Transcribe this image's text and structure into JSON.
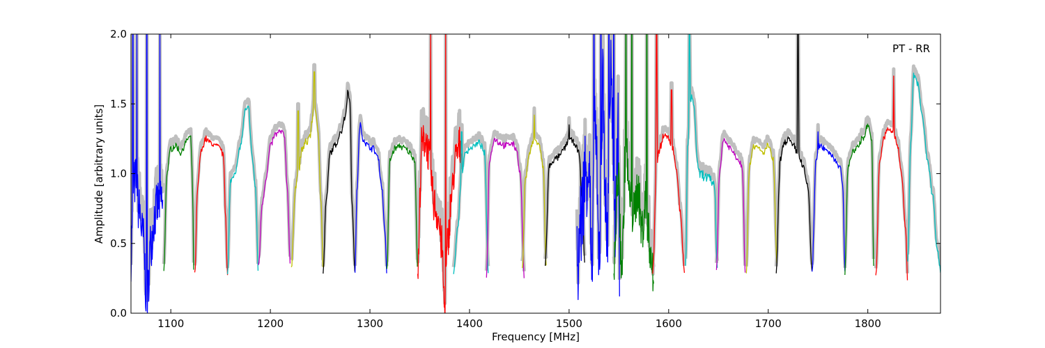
{
  "chart_data": {
    "type": "line",
    "title": "",
    "xlabel": "Frequency [MHz]",
    "ylabel": "Amplitude [arbitrary units]",
    "annotation": "PT - RR",
    "xlim": [
      1060,
      1873
    ],
    "ylim": [
      0.0,
      2.0
    ],
    "xticks": [
      1100,
      1200,
      1300,
      1400,
      1500,
      1600,
      1700,
      1800
    ],
    "yticks": [
      0.0,
      0.5,
      1.0,
      1.5,
      2.0
    ],
    "xtick_labels": [
      "1100",
      "1200",
      "1300",
      "1400",
      "1500",
      "1600",
      "1700",
      "1800"
    ],
    "ytick_labels": [
      "0.0",
      "0.5",
      "1.0",
      "1.5",
      "2.0"
    ],
    "grid": false,
    "legend": "none",
    "envelope_color": "#bfbfbf",
    "colors": {
      "b": "#0000ff",
      "g": "#008000",
      "r": "#ff0000",
      "c": "#00bfbf",
      "m": "#bf00bf",
      "y": "#bfbf00",
      "k": "#000000"
    },
    "bands": [
      {
        "color": "b",
        "x": [
          1060,
          1062,
          1065,
          1068,
          1072,
          1076,
          1080,
          1084,
          1088,
          1091,
          1092
        ],
        "y": [
          0.4,
          0.9,
          0.95,
          0.75,
          0.55,
          0.08,
          0.5,
          0.7,
          0.8,
          0.8,
          0.75
        ],
        "noise": 0.18,
        "spikes": [
          [
            1062,
            2.0
          ],
          [
            1066,
            2.0
          ],
          [
            1076,
            2.0
          ],
          [
            1089,
            2.0
          ]
        ]
      },
      {
        "color": "g",
        "x": [
          1093,
          1096,
          1100,
          1105,
          1110,
          1115,
          1118,
          1120,
          1122,
          1123
        ],
        "y": [
          0.3,
          1.0,
          1.18,
          1.2,
          1.15,
          1.22,
          1.26,
          1.25,
          0.9,
          0.3
        ],
        "noise": 0.02,
        "spikes": []
      },
      {
        "color": "r",
        "x": [
          1124,
          1127,
          1130,
          1135,
          1140,
          1145,
          1150,
          1153,
          1155,
          1157
        ],
        "y": [
          0.27,
          0.9,
          1.15,
          1.25,
          1.22,
          1.2,
          1.18,
          1.12,
          0.7,
          0.27
        ],
        "noise": 0.02,
        "spikes": []
      },
      {
        "color": "c",
        "x": [
          1157,
          1160,
          1165,
          1170,
          1175,
          1178,
          1182,
          1185,
          1188
        ],
        "y": [
          0.27,
          0.95,
          1.02,
          1.2,
          1.45,
          1.47,
          1.1,
          0.9,
          0.28
        ],
        "noise": 0.02,
        "spikes": []
      },
      {
        "color": "m",
        "x": [
          1188,
          1192,
          1196,
          1200,
          1205,
          1210,
          1214,
          1217,
          1220
        ],
        "y": [
          0.34,
          0.8,
          0.98,
          1.2,
          1.28,
          1.3,
          1.28,
          0.9,
          0.35
        ],
        "noise": 0.02,
        "spikes": []
      },
      {
        "color": "y",
        "x": [
          1221,
          1225,
          1228,
          1232,
          1236,
          1240,
          1244,
          1248,
          1251,
          1253
        ],
        "y": [
          0.3,
          0.9,
          1.0,
          1.18,
          1.22,
          1.28,
          1.5,
          1.3,
          0.8,
          0.3
        ],
        "noise": 0.03,
        "spikes": [
          [
            1228,
            1.45
          ],
          [
            1244,
            1.73
          ]
        ]
      },
      {
        "color": "k",
        "x": [
          1253,
          1256,
          1260,
          1265,
          1270,
          1275,
          1278,
          1280,
          1282,
          1285
        ],
        "y": [
          0.3,
          0.8,
          1.15,
          1.2,
          1.28,
          1.4,
          1.6,
          1.5,
          0.8,
          0.3
        ],
        "noise": 0.02,
        "spikes": [
          [
            1270,
            1.3
          ]
        ]
      },
      {
        "color": "b",
        "x": [
          1285,
          1287,
          1290,
          1293,
          1298,
          1303,
          1308,
          1312,
          1315,
          1317
        ],
        "y": [
          0.28,
          0.9,
          1.35,
          1.25,
          1.2,
          1.18,
          1.12,
          0.9,
          0.6,
          0.28
        ],
        "noise": 0.02,
        "spikes": []
      },
      {
        "color": "g",
        "x": [
          1317,
          1320,
          1325,
          1330,
          1335,
          1340,
          1345,
          1348
        ],
        "y": [
          0.3,
          1.1,
          1.18,
          1.2,
          1.18,
          1.15,
          1.1,
          0.3
        ],
        "noise": 0.02,
        "spikes": []
      },
      {
        "color": "r",
        "x": [
          1348,
          1352,
          1356,
          1360,
          1364,
          1368,
          1372,
          1375,
          1378,
          1382,
          1386,
          1390,
          1392
        ],
        "y": [
          0.3,
          1.2,
          1.25,
          1.1,
          0.8,
          0.7,
          0.5,
          0.05,
          0.5,
          0.85,
          1.1,
          1.2,
          1.15
        ],
        "noise": 0.14,
        "spikes": [
          [
            1361,
            2.0
          ],
          [
            1376,
            2.0
          ]
        ]
      },
      {
        "color": "c",
        "x": [
          1384,
          1388,
          1392,
          1396,
          1400,
          1405,
          1410,
          1415,
          1419
        ],
        "y": [
          0.3,
          0.6,
          1.0,
          1.15,
          1.18,
          1.2,
          1.22,
          1.15,
          0.3
        ],
        "noise": 0.02,
        "spikes": [
          [
            1392,
            1.3
          ]
        ]
      },
      {
        "color": "m",
        "x": [
          1417,
          1420,
          1425,
          1430,
          1436,
          1442,
          1447,
          1451,
          1455
        ],
        "y": [
          0.25,
          1.1,
          1.25,
          1.22,
          1.2,
          1.22,
          1.18,
          1.0,
          0.26
        ],
        "noise": 0.02,
        "spikes": []
      },
      {
        "color": "y",
        "x": [
          1453,
          1456,
          1460,
          1465,
          1470,
          1474,
          1477
        ],
        "y": [
          0.3,
          0.95,
          1.15,
          1.25,
          1.2,
          1.05,
          0.35
        ],
        "noise": 0.02,
        "spikes": [
          [
            1465,
            1.42
          ]
        ]
      },
      {
        "color": "k",
        "x": [
          1476,
          1480,
          1485,
          1490,
          1495,
          1500,
          1505,
          1510,
          1513,
          1516
        ],
        "y": [
          0.35,
          1.05,
          1.1,
          1.12,
          1.18,
          1.25,
          1.22,
          1.15,
          0.8,
          0.35
        ],
        "noise": 0.02,
        "spikes": [
          [
            1500,
            1.35
          ]
        ]
      },
      {
        "color": "b",
        "x": [
          1508,
          1512,
          1516,
          1520,
          1523,
          1526,
          1530,
          1534,
          1538,
          1542,
          1546,
          1549,
          1551
        ],
        "y": [
          0.3,
          0.65,
          1.0,
          1.1,
          0.2,
          1.4,
          0.4,
          1.6,
          0.5,
          1.7,
          0.6,
          1.3,
          0.4
        ],
        "noise": 0.35,
        "spikes": [
          [
            1525,
            2.0
          ],
          [
            1532,
            2.0
          ],
          [
            1540,
            2.0
          ],
          [
            1545,
            2.0
          ]
        ]
      },
      {
        "color": "g",
        "x": [
          1545,
          1549,
          1553,
          1557,
          1561,
          1565,
          1569,
          1573,
          1577,
          1581,
          1585
        ],
        "y": [
          0.3,
          1.0,
          0.35,
          1.2,
          0.8,
          0.7,
          0.9,
          0.6,
          0.8,
          0.5,
          0.2
        ],
        "noise": 0.18,
        "spikes": [
          [
            1557,
            2.0
          ],
          [
            1563,
            2.0
          ],
          [
            1578,
            2.0
          ]
        ]
      },
      {
        "color": "r",
        "x": [
          1584,
          1588,
          1592,
          1596,
          1600,
          1604,
          1608,
          1612,
          1616
        ],
        "y": [
          0.3,
          1.1,
          1.2,
          1.3,
          1.25,
          1.18,
          1.0,
          0.7,
          0.27
        ],
        "noise": 0.03,
        "spikes": [
          [
            1588,
            2.0
          ],
          [
            1603,
            1.6
          ]
        ]
      },
      {
        "color": "c",
        "x": [
          1617,
          1619,
          1622,
          1625,
          1630,
          1636,
          1642,
          1646,
          1649
        ],
        "y": [
          0.3,
          1.2,
          1.55,
          1.5,
          1.0,
          0.98,
          0.95,
          0.92,
          0.3
        ],
        "noise": 0.04,
        "spikes": [
          [
            1621,
            2.0
          ]
        ]
      },
      {
        "color": "m",
        "x": [
          1648,
          1651,
          1655,
          1660,
          1665,
          1670,
          1674,
          1677
        ],
        "y": [
          0.32,
          1.0,
          1.25,
          1.2,
          1.15,
          1.1,
          1.05,
          0.3
        ],
        "noise": 0.02,
        "spikes": []
      },
      {
        "color": "y",
        "x": [
          1678,
          1681,
          1685,
          1690,
          1695,
          1700,
          1705,
          1709
        ],
        "y": [
          0.3,
          1.05,
          1.2,
          1.18,
          1.15,
          1.2,
          1.1,
          0.32
        ],
        "noise": 0.02,
        "spikes": []
      },
      {
        "color": "k",
        "x": [
          1708,
          1712,
          1716,
          1720,
          1725,
          1730,
          1735,
          1740,
          1744
        ],
        "y": [
          0.3,
          1.1,
          1.22,
          1.25,
          1.2,
          1.15,
          1.05,
          0.9,
          0.3
        ],
        "noise": 0.02,
        "spikes": [
          [
            1730,
            2.0
          ]
        ]
      },
      {
        "color": "b",
        "x": [
          1744,
          1748,
          1752,
          1757,
          1762,
          1767,
          1772,
          1775,
          1777
        ],
        "y": [
          0.3,
          1.1,
          1.2,
          1.18,
          1.15,
          1.1,
          1.05,
          0.9,
          0.3
        ],
        "noise": 0.02,
        "spikes": [
          [
            1750,
            1.3
          ]
        ]
      },
      {
        "color": "g",
        "x": [
          1777,
          1780,
          1785,
          1790,
          1795,
          1800,
          1804,
          1806
        ],
        "y": [
          0.3,
          1.05,
          1.15,
          1.2,
          1.25,
          1.35,
          1.25,
          0.3
        ],
        "noise": 0.02,
        "spikes": []
      },
      {
        "color": "r",
        "x": [
          1808,
          1812,
          1816,
          1820,
          1825,
          1830,
          1834,
          1838,
          1840
        ],
        "y": [
          0.25,
          1.1,
          1.25,
          1.32,
          1.3,
          1.2,
          1.0,
          0.6,
          0.25
        ],
        "noise": 0.02,
        "spikes": [
          [
            1826,
            1.7
          ]
        ]
      },
      {
        "color": "c",
        "x": [
          1840,
          1843,
          1846,
          1850,
          1855,
          1860,
          1865,
          1870,
          1873
        ],
        "y": [
          0.35,
          1.2,
          1.7,
          1.65,
          1.4,
          1.1,
          0.85,
          0.45,
          0.3
        ],
        "noise": 0.02,
        "spikes": []
      }
    ]
  }
}
